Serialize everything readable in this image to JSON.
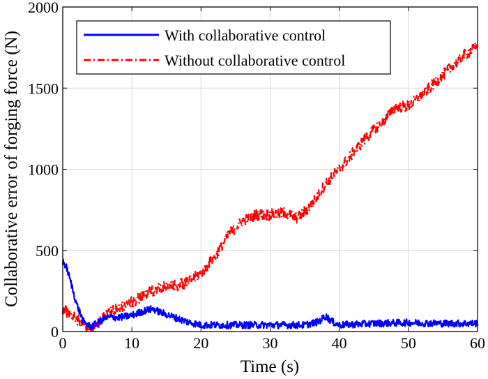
{
  "chart_data": {
    "type": "line",
    "title": "",
    "xlabel": "Time (s)",
    "ylabel": "Collaborative error of forging force (N)",
    "xlim": [
      0,
      60
    ],
    "ylim": [
      0,
      2000
    ],
    "xticks": [
      0,
      10,
      20,
      30,
      40,
      50,
      60
    ],
    "yticks": [
      0,
      500,
      1000,
      1500,
      2000
    ],
    "grid": true,
    "legend_position": "top-left",
    "series": [
      {
        "name": "With collaborative control",
        "color": "#0000ff",
        "style": "solid",
        "noise": 22,
        "x": [
          0,
          0.5,
          1,
          2,
          3,
          4,
          5,
          6,
          7,
          8,
          10,
          12,
          13,
          14,
          16,
          18,
          20,
          25,
          30,
          35,
          37,
          38,
          39,
          40,
          45,
          50,
          55,
          60
        ],
        "y": [
          430,
          400,
          330,
          170,
          60,
          30,
          50,
          80,
          90,
          85,
          100,
          130,
          140,
          120,
          90,
          60,
          40,
          40,
          40,
          40,
          60,
          95,
          60,
          40,
          50,
          55,
          50,
          50
        ]
      },
      {
        "name": "Without collaborative control",
        "color": "#ff0000",
        "style": "dash-dot",
        "noise": 35,
        "x": [
          0,
          1,
          2,
          3,
          4,
          5,
          6,
          8,
          10,
          12,
          14,
          16,
          18,
          20,
          22,
          24,
          26,
          28,
          30,
          32,
          34,
          36,
          38,
          40,
          42,
          44,
          46,
          48,
          50,
          52,
          54,
          56,
          58,
          60
        ],
        "y": [
          140,
          110,
          80,
          40,
          20,
          40,
          110,
          140,
          180,
          230,
          270,
          280,
          300,
          360,
          460,
          600,
          680,
          720,
          720,
          730,
          700,
          780,
          910,
          1000,
          1100,
          1200,
          1280,
          1380,
          1390,
          1460,
          1540,
          1620,
          1700,
          1760
        ]
      }
    ]
  }
}
